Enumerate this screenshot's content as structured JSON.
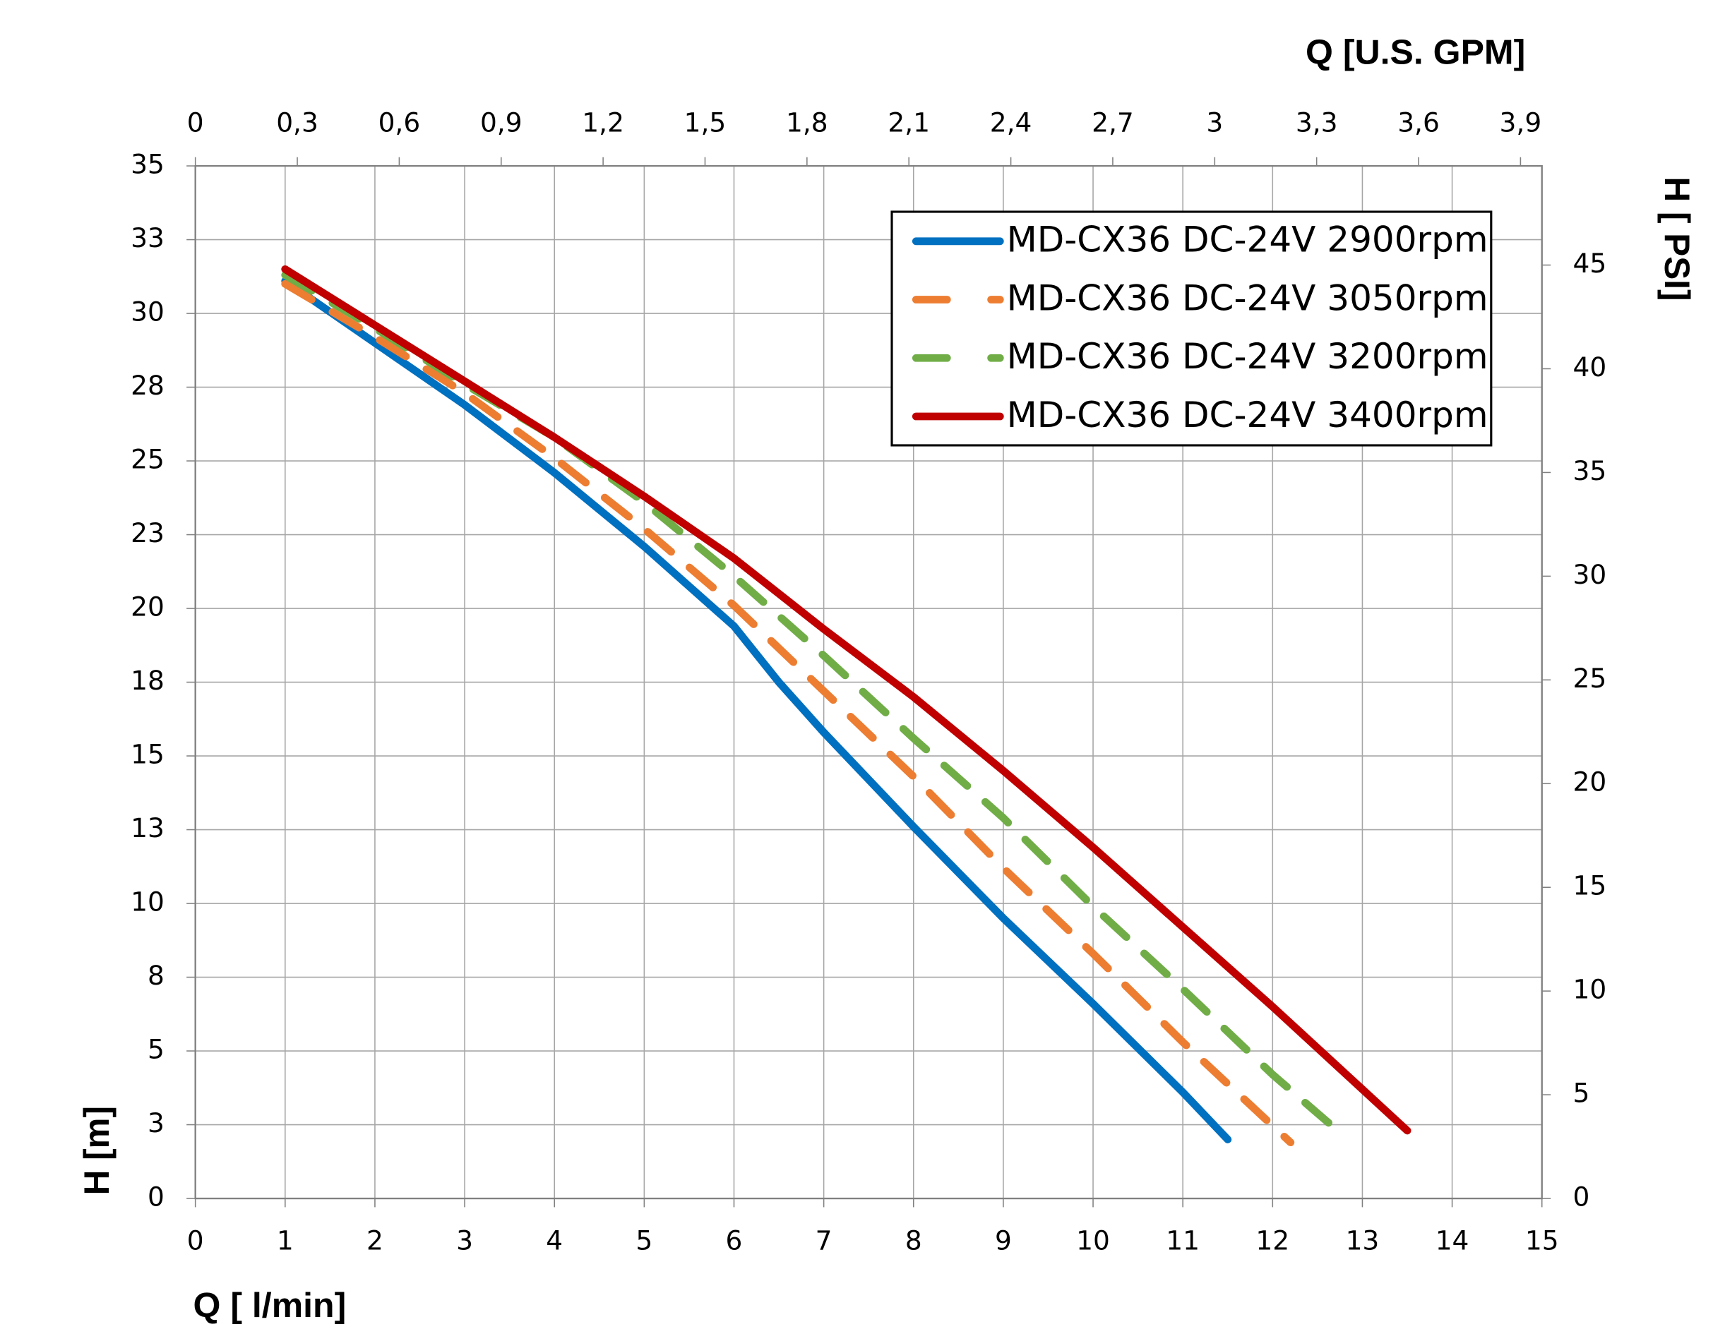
{
  "chart_data": {
    "type": "line",
    "xlabel": "Q [ l/min]",
    "ylabel": "H [m]",
    "x2label": "Q  [U.S. GPM]",
    "y2label": "H [ PSI]",
    "xlim": [
      0,
      15
    ],
    "xticks": [
      0,
      1,
      2,
      3,
      4,
      5,
      6,
      7,
      8,
      9,
      10,
      11,
      12,
      13,
      14,
      15
    ],
    "ylim": [
      0,
      35
    ],
    "yticks": [
      0,
      {
        "value": 2.5,
        "label": "3"
      },
      5,
      {
        "value": 7.5,
        "label": "8"
      },
      10,
      {
        "value": 12.5,
        "label": "13"
      },
      15,
      {
        "value": 17.5,
        "label": "18"
      },
      20,
      {
        "value": 22.5,
        "label": "23"
      },
      25,
      {
        "value": 27.5,
        "label": "28"
      },
      30,
      {
        "value": 32.5,
        "label": "33"
      },
      35
    ],
    "x2lim": [
      0,
      3.963
    ],
    "x2ticks": [
      0,
      {
        "value": 0.3,
        "label": "0,3"
      },
      {
        "value": 0.6,
        "label": "0,6"
      },
      {
        "value": 0.9,
        "label": "0,9"
      },
      {
        "value": 1.2,
        "label": "1,2"
      },
      {
        "value": 1.5,
        "label": "1,5"
      },
      {
        "value": 1.8,
        "label": "1,8"
      },
      {
        "value": 2.1,
        "label": "2,1"
      },
      {
        "value": 2.4,
        "label": "2,4"
      },
      {
        "value": 2.7,
        "label": "2,7"
      },
      3,
      {
        "value": 3.3,
        "label": "3,3"
      },
      {
        "value": 3.6,
        "label": "3,6"
      },
      {
        "value": 3.9,
        "label": "3,9"
      }
    ],
    "y2lim": [
      0,
      49.78
    ],
    "y2ticks": [
      0,
      5,
      10,
      15,
      20,
      25,
      30,
      35,
      40,
      45
    ],
    "grid": true,
    "legend": "upper right",
    "series": [
      {
        "name": "MD-CX36 DC-24V 2900rpm",
        "color": "#0070c0",
        "style": "solid",
        "x": [
          1,
          2,
          3,
          4,
          5,
          6,
          6.5,
          7,
          8,
          9,
          10,
          11,
          11.5
        ],
        "values": [
          31.1,
          29.0,
          26.9,
          24.6,
          22.1,
          19.4,
          17.5,
          15.8,
          12.6,
          9.5,
          6.6,
          3.6,
          2.0
        ]
      },
      {
        "name": "MD-CX36 DC-24V 3050rpm",
        "color": "#ed7d31",
        "style": "dashed",
        "x": [
          1,
          2,
          3,
          4,
          5,
          6,
          7,
          8,
          9,
          10,
          11,
          12.2
        ],
        "values": [
          31.0,
          29.2,
          27.3,
          25.1,
          22.7,
          20.1,
          17.2,
          14.3,
          11.2,
          8.3,
          5.3,
          1.9
        ]
      },
      {
        "name": "MD-CX36 DC-24V 3200rpm",
        "color": "#70ad47",
        "style": "dashed",
        "x": [
          1,
          2,
          3,
          4,
          5,
          6,
          7,
          8,
          9,
          10,
          11,
          12,
          12.8
        ],
        "values": [
          31.3,
          29.5,
          27.6,
          25.8,
          23.6,
          21.1,
          18.4,
          15.6,
          12.9,
          9.9,
          7.1,
          4.2,
          2.1
        ]
      },
      {
        "name": "MD-CX36 DC-24V 3400rpm",
        "color": "#c00000",
        "style": "solid",
        "x": [
          1,
          2,
          3,
          4,
          5,
          6,
          7,
          8,
          9,
          10,
          11,
          12,
          13,
          13.5
        ],
        "values": [
          31.5,
          29.6,
          27.7,
          25.8,
          23.8,
          21.7,
          19.3,
          17.0,
          14.5,
          11.9,
          9.2,
          6.5,
          3.7,
          2.3
        ]
      }
    ]
  }
}
